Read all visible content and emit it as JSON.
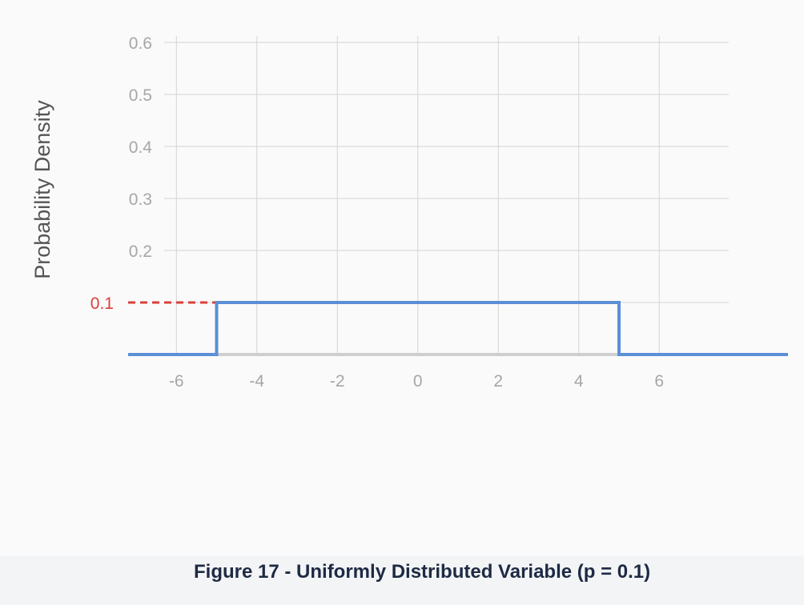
{
  "caption": "Figure 17 - Uniformly Distributed Variable (p = 0.1)",
  "colors": {
    "series": "#5b8fd6",
    "highlight": "#d9403a",
    "grid": "#d4d4d4",
    "axis": "#cfcfcf",
    "tick_label": "#a6a6a6",
    "ylabel": "#555555",
    "caption": "#1e2a44"
  },
  "chart_data": {
    "type": "line",
    "title": "",
    "xlabel": "",
    "ylabel": "Probability Density",
    "xlim": [
      -7.2,
      9.2
    ],
    "ylim": [
      0,
      0.6
    ],
    "x_ticks": [
      -6,
      -4,
      -2,
      0,
      2,
      4,
      6
    ],
    "x_tick_labels": [
      "-6",
      "-4",
      "-2",
      "0",
      "2",
      "4",
      "6"
    ],
    "y_ticks": [
      0.2,
      0.3,
      0.4,
      0.5,
      0.6
    ],
    "y_tick_labels": [
      "0.2",
      "0.3",
      "0.4",
      "0.5",
      "0.6"
    ],
    "grid": true,
    "series": [
      {
        "x": [
          -7.2,
          -5,
          -5,
          5,
          5,
          9.2
        ],
        "y": [
          0,
          0,
          0.1,
          0.1,
          0,
          0
        ]
      }
    ],
    "annotations": [
      {
        "label": "0.1",
        "y": 0.1,
        "x_from": -7.2,
        "x_to": -5,
        "style": "dashed"
      }
    ]
  }
}
